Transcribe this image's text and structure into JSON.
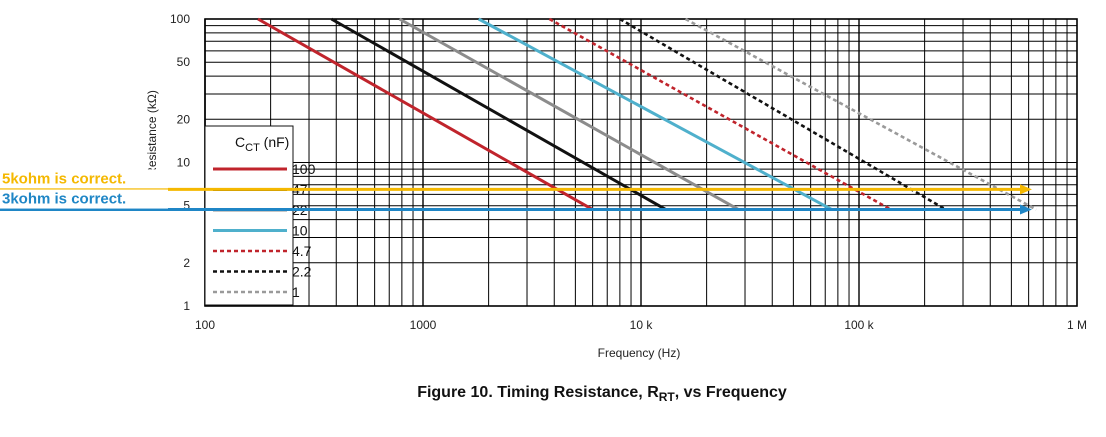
{
  "chart_data": {
    "type": "line",
    "x_scale": "log",
    "y_scale": "log",
    "xlim": [
      100,
      1000000
    ],
    "ylim": [
      1,
      100
    ],
    "xlabel": "Frequency (Hz)",
    "ylabel": "Resistance (kΩ)",
    "x_tick_labels": [
      {
        "value": 100,
        "label": "100"
      },
      {
        "value": 1000,
        "label": "1000"
      },
      {
        "value": 10000,
        "label": "10 k"
      },
      {
        "value": 100000,
        "label": "100 k"
      },
      {
        "value": 1000000,
        "label": "1 M"
      }
    ],
    "y_tick_labels": [
      {
        "value": 1,
        "label": "1"
      },
      {
        "value": 2,
        "label": "2"
      },
      {
        "value": 5,
        "label": "5"
      },
      {
        "value": 10,
        "label": "10"
      },
      {
        "value": 20,
        "label": "20"
      },
      {
        "value": 50,
        "label": "50"
      },
      {
        "value": 100,
        "label": "100"
      }
    ],
    "grid": true,
    "legend": {
      "title_main": "C",
      "title_sub": "CT",
      "title_suffix": " (nF)",
      "placement": "left"
    },
    "series": [
      {
        "name": "100",
        "color": "#c0242c",
        "style": "solid",
        "points": [
          [
            175,
            100
          ],
          [
            6000,
            4.7
          ]
        ]
      },
      {
        "name": "47",
        "color": "#111111",
        "style": "solid",
        "points": [
          [
            380,
            100
          ],
          [
            13000,
            4.7
          ]
        ]
      },
      {
        "name": "22",
        "color": "#8c8c8c",
        "style": "solid",
        "points": [
          [
            780,
            100
          ],
          [
            28000,
            4.7
          ]
        ]
      },
      {
        "name": "10",
        "color": "#4fb0cc",
        "style": "solid",
        "points": [
          [
            1800,
            100
          ],
          [
            75000,
            4.7
          ]
        ]
      },
      {
        "name": "4.7",
        "color": "#c0242c",
        "style": "dashed",
        "points": [
          [
            3800,
            100
          ],
          [
            140000,
            4.7
          ]
        ]
      },
      {
        "name": "2.2",
        "color": "#111111",
        "style": "dashed",
        "points": [
          [
            8000,
            100
          ],
          [
            250000,
            4.7
          ]
        ]
      },
      {
        "name": "1",
        "color": "#9a9a9a",
        "style": "dashed",
        "points": [
          [
            16000,
            100
          ],
          [
            650000,
            4.7
          ]
        ]
      }
    ],
    "annotations": [
      {
        "text": "5kohm is correct.",
        "color": "#f5b800",
        "y_value": 6.5
      },
      {
        "text": "3kohm is correct.",
        "color": "#1f86c6",
        "y_value": 4.7
      }
    ],
    "caption": {
      "main": "Figure 10.  Timing Resistance, R",
      "sub": "RT",
      "suffix": ", vs Frequency"
    }
  }
}
